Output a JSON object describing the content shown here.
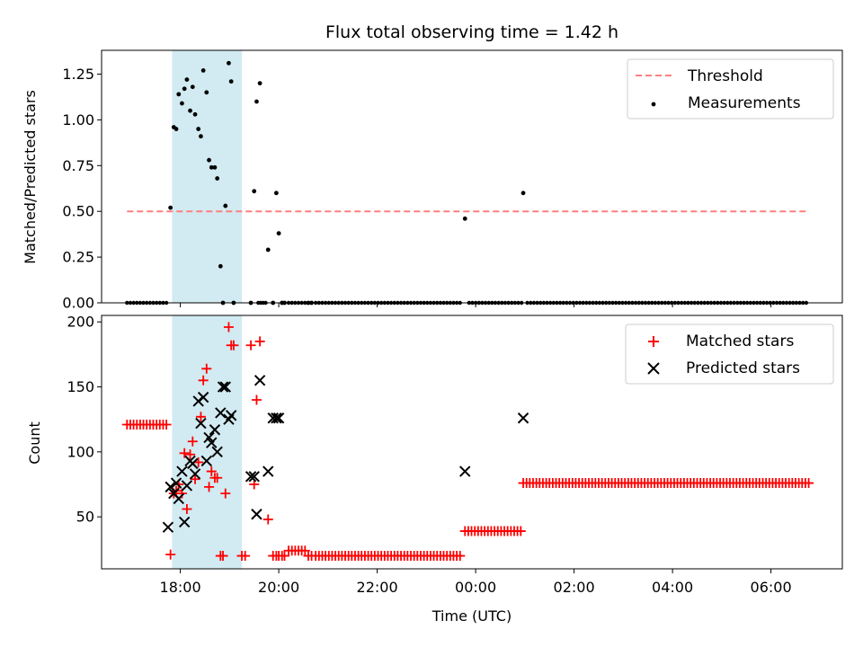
{
  "chart_data": [
    {
      "type": "scatter",
      "title": "Flux total observing time = 1.42 h",
      "xlabel": "",
      "ylabel": "Matched/Predicted stars",
      "xlim": [
        "16:24",
        "07:27"
      ],
      "ylim": [
        0,
        1.38
      ],
      "yticks": [
        "0.00",
        "0.25",
        "0.50",
        "0.75",
        "1.00",
        "1.25"
      ],
      "ytick_values": [
        0,
        0.25,
        0.5,
        0.75,
        1.0,
        1.25
      ],
      "legend_position": "top-right",
      "shaded_interval": [
        "17:50",
        "19:15"
      ],
      "series": [
        {
          "name": "Threshold",
          "kind": "line",
          "style": "dashed",
          "color": "#ff7f7f",
          "x": [
            "16:55",
            "06:46"
          ],
          "y": [
            0.5,
            0.5
          ]
        },
        {
          "name": "Measurements",
          "kind": "points",
          "color": "#000000",
          "x": [
            "17:48",
            "17:52",
            "17:55",
            "17:58",
            "18:02",
            "18:05",
            "18:08",
            "18:12",
            "18:15",
            "18:18",
            "18:22",
            "18:25",
            "18:28",
            "18:32",
            "18:35",
            "18:38",
            "18:42",
            "18:45",
            "18:49",
            "18:52",
            "18:55",
            "18:59",
            "19:02",
            "19:05",
            "19:26",
            "19:30",
            "19:33",
            "19:37",
            "19:47",
            "19:53",
            "19:57",
            "20:00",
            "20:04",
            "20:07",
            "20:36",
            "20:40",
            "23:47",
            "00:58"
          ],
          "y": [
            0.52,
            0.96,
            0.95,
            1.14,
            1.09,
            1.17,
            1.22,
            1.05,
            1.18,
            1.03,
            0.95,
            0.91,
            1.27,
            1.15,
            0.78,
            0.74,
            0.74,
            0.68,
            0.2,
            0.0,
            0.53,
            1.31,
            1.21,
            0.0,
            0.0,
            0.61,
            1.1,
            1.2,
            0.29,
            0.0,
            0.6,
            0.38,
            0.0,
            0.0,
            0.0,
            0.0,
            0.46,
            0.6
          ]
        },
        {
          "name": "",
          "kind": "zero-runs",
          "color": "#000000",
          "runs": [
            {
              "from": "16:55",
              "to": "17:45",
              "step_minutes": 4,
              "value": 0
            },
            {
              "from": "19:35",
              "to": "19:44",
              "step_minutes": 3,
              "value": 0
            },
            {
              "from": "20:12",
              "to": "20:33",
              "step_minutes": 4,
              "value": 0
            },
            {
              "from": "20:45",
              "to": "23:42",
              "step_minutes": 4,
              "value": 0
            },
            {
              "from": "23:52",
              "to": "00:56",
              "step_minutes": 4,
              "value": 0
            },
            {
              "from": "01:03",
              "to": "06:46",
              "step_minutes": 4,
              "value": 0
            }
          ]
        }
      ]
    },
    {
      "type": "scatter",
      "title": "",
      "xlabel": "Time (UTC)",
      "ylabel": "Count",
      "xlim": [
        "16:24",
        "07:27"
      ],
      "ylim": [
        10,
        205
      ],
      "xticks": [
        "18:00",
        "20:00",
        "22:00",
        "00:00",
        "02:00",
        "04:00",
        "06:00"
      ],
      "yticks": [
        "50",
        "100",
        "150",
        "200"
      ],
      "ytick_values": [
        50,
        100,
        150,
        200
      ],
      "legend_position": "top-right",
      "shaded_interval": [
        "17:50",
        "19:15"
      ],
      "series": [
        {
          "name": "Matched stars",
          "kind": "points",
          "marker": "plus",
          "color": "#ff0000",
          "x": [
            "17:48",
            "17:52",
            "17:55",
            "17:58",
            "18:02",
            "18:05",
            "18:08",
            "18:12",
            "18:15",
            "18:18",
            "18:22",
            "18:25",
            "18:28",
            "18:32",
            "18:35",
            "18:38",
            "18:42",
            "18:45",
            "18:49",
            "18:52",
            "18:55",
            "18:59",
            "19:02",
            "19:05",
            "19:26",
            "19:30",
            "19:33",
            "19:37",
            "19:47",
            "19:53",
            "19:57",
            "20:00",
            "20:04",
            "20:07",
            "20:36",
            "20:40",
            "19:15",
            "19:19"
          ],
          "y": [
            21,
            68,
            70,
            75,
            68,
            99,
            56,
            98,
            108,
            79,
            92,
            127,
            155,
            164,
            73,
            85,
            80,
            80,
            20,
            20,
            68,
            196,
            182,
            182,
            182,
            75,
            140,
            185,
            48,
            20,
            20,
            20,
            20,
            20,
            20,
            20,
            20,
            20
          ]
        },
        {
          "name": "",
          "kind": "runs",
          "marker": "plus",
          "color": "#ff0000",
          "runs": [
            {
              "from": "16:55",
              "to": "17:45",
              "step_minutes": 4,
              "value": 121
            },
            {
              "from": "20:12",
              "to": "20:33",
              "step_minutes": 4,
              "value": 24
            },
            {
              "from": "20:45",
              "to": "23:42",
              "step_minutes": 4,
              "value": 20
            },
            {
              "from": "23:47",
              "to": "00:56",
              "step_minutes": 4,
              "value": 39
            },
            {
              "from": "00:58",
              "to": "06:46",
              "step_minutes": 4,
              "value": 76
            }
          ]
        },
        {
          "name": "Predicted stars",
          "kind": "points",
          "marker": "x",
          "color": "#000000",
          "x": [
            "17:45",
            "17:48",
            "17:52",
            "17:55",
            "17:58",
            "18:02",
            "18:05",
            "18:08",
            "18:12",
            "18:15",
            "18:18",
            "18:22",
            "18:25",
            "18:28",
            "18:32",
            "18:35",
            "18:38",
            "18:42",
            "18:45",
            "18:49",
            "18:52",
            "18:55",
            "18:59",
            "19:02",
            "19:26",
            "19:30",
            "19:33",
            "19:37",
            "19:47",
            "19:53",
            "19:57",
            "20:00",
            "23:47",
            "00:58"
          ],
          "y": [
            42,
            73,
            68,
            76,
            64,
            85,
            46,
            74,
            93,
            91,
            83,
            139,
            122,
            142,
            93,
            111,
            107,
            117,
            100,
            130,
            150,
            150,
            125,
            128,
            81,
            81,
            52,
            155,
            85,
            126,
            126,
            126,
            85,
            126
          ]
        }
      ]
    }
  ]
}
